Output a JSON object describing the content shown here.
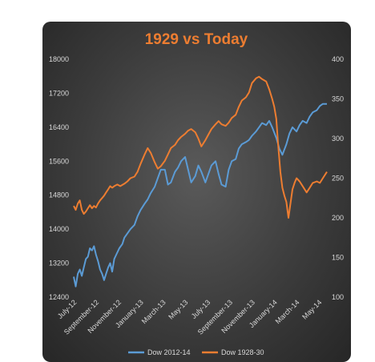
{
  "chart_data": {
    "type": "line",
    "title": "1929 vs Today",
    "x_categories": [
      "July-12",
      "September-12",
      "November-12",
      "January-13",
      "March-13",
      "May-13",
      "July-13",
      "September-13",
      "November-13",
      "January-14",
      "March-14",
      "May-14"
    ],
    "left_axis": {
      "ticks": [
        12400,
        13200,
        14000,
        14800,
        15600,
        16400,
        17200,
        18000
      ],
      "range": [
        12400,
        18000
      ]
    },
    "right_axis": {
      "ticks": [
        100,
        150,
        200,
        250,
        300,
        350,
        400
      ],
      "range": [
        100,
        400
      ]
    },
    "legend_position": "bottom",
    "series": [
      {
        "name": "Dow 2012-14",
        "axis": "left",
        "color": "#5b9bd5",
        "points": [
          [
            0.0,
            12880
          ],
          [
            0.2,
            12650
          ],
          [
            0.4,
            12950
          ],
          [
            0.6,
            13050
          ],
          [
            0.8,
            12900
          ],
          [
            1.0,
            13100
          ],
          [
            1.2,
            13300
          ],
          [
            1.4,
            13350
          ],
          [
            1.6,
            13550
          ],
          [
            1.8,
            13500
          ],
          [
            2.0,
            13600
          ],
          [
            2.2,
            13400
          ],
          [
            2.4,
            13250
          ],
          [
            2.6,
            13050
          ],
          [
            2.8,
            12950
          ],
          [
            3.0,
            12800
          ],
          [
            3.2,
            12950
          ],
          [
            3.4,
            13100
          ],
          [
            3.6,
            13200
          ],
          [
            3.8,
            13000
          ],
          [
            4.0,
            13300
          ],
          [
            4.2,
            13400
          ],
          [
            4.5,
            13550
          ],
          [
            4.8,
            13650
          ],
          [
            5.0,
            13800
          ],
          [
            5.3,
            13900
          ],
          [
            5.6,
            14000
          ],
          [
            6.0,
            14100
          ],
          [
            6.3,
            14300
          ],
          [
            6.6,
            14450
          ],
          [
            7.0,
            14600
          ],
          [
            7.3,
            14700
          ],
          [
            7.6,
            14850
          ],
          [
            8.0,
            15000
          ],
          [
            8.3,
            15200
          ],
          [
            8.6,
            15400
          ],
          [
            9.0,
            15400
          ],
          [
            9.3,
            15050
          ],
          [
            9.6,
            15100
          ],
          [
            10.0,
            15350
          ],
          [
            10.3,
            15450
          ],
          [
            10.6,
            15600
          ],
          [
            11.0,
            15700
          ],
          [
            11.3,
            15400
          ],
          [
            11.6,
            15100
          ],
          [
            12.0,
            15250
          ],
          [
            12.3,
            15500
          ],
          [
            12.6,
            15350
          ],
          [
            13.0,
            15100
          ],
          [
            13.3,
            15300
          ],
          [
            13.6,
            15500
          ],
          [
            14.0,
            15600
          ],
          [
            14.3,
            15300
          ],
          [
            14.6,
            15050
          ],
          [
            15.0,
            15000
          ],
          [
            15.3,
            15400
          ],
          [
            15.6,
            15600
          ],
          [
            16.0,
            15650
          ],
          [
            16.3,
            15900
          ],
          [
            16.6,
            16000
          ],
          [
            17.0,
            16050
          ],
          [
            17.3,
            16100
          ],
          [
            17.6,
            16200
          ],
          [
            18.0,
            16300
          ],
          [
            18.3,
            16400
          ],
          [
            18.6,
            16500
          ],
          [
            19.0,
            16450
          ],
          [
            19.3,
            16550
          ],
          [
            19.6,
            16400
          ],
          [
            20.0,
            16150
          ],
          [
            20.3,
            15900
          ],
          [
            20.6,
            15750
          ],
          [
            21.0,
            16000
          ],
          [
            21.3,
            16250
          ],
          [
            21.6,
            16400
          ],
          [
            22.0,
            16300
          ],
          [
            22.3,
            16450
          ],
          [
            22.6,
            16550
          ],
          [
            23.0,
            16500
          ],
          [
            23.3,
            16650
          ],
          [
            23.6,
            16750
          ],
          [
            24.0,
            16800
          ],
          [
            24.3,
            16900
          ],
          [
            24.6,
            16950
          ],
          [
            25.0,
            16950
          ]
        ]
      },
      {
        "name": "Dow 1928-30",
        "axis": "right",
        "color": "#ed7d31",
        "points": [
          [
            0.0,
            215
          ],
          [
            0.2,
            210
          ],
          [
            0.4,
            218
          ],
          [
            0.6,
            222
          ],
          [
            0.8,
            210
          ],
          [
            1.0,
            205
          ],
          [
            1.2,
            208
          ],
          [
            1.4,
            212
          ],
          [
            1.6,
            216
          ],
          [
            1.8,
            212
          ],
          [
            2.0,
            215
          ],
          [
            2.2,
            213
          ],
          [
            2.4,
            218
          ],
          [
            2.6,
            222
          ],
          [
            2.8,
            225
          ],
          [
            3.0,
            228
          ],
          [
            3.2,
            232
          ],
          [
            3.4,
            236
          ],
          [
            3.6,
            240
          ],
          [
            3.8,
            238
          ],
          [
            4.0,
            240
          ],
          [
            4.3,
            242
          ],
          [
            4.6,
            240
          ],
          [
            5.0,
            243
          ],
          [
            5.3,
            246
          ],
          [
            5.6,
            250
          ],
          [
            6.0,
            252
          ],
          [
            6.3,
            258
          ],
          [
            6.6,
            268
          ],
          [
            7.0,
            280
          ],
          [
            7.3,
            288
          ],
          [
            7.6,
            282
          ],
          [
            8.0,
            270
          ],
          [
            8.3,
            262
          ],
          [
            8.6,
            265
          ],
          [
            9.0,
            272
          ],
          [
            9.3,
            280
          ],
          [
            9.6,
            288
          ],
          [
            10.0,
            292
          ],
          [
            10.3,
            298
          ],
          [
            10.6,
            302
          ],
          [
            11.0,
            306
          ],
          [
            11.3,
            310
          ],
          [
            11.6,
            312
          ],
          [
            12.0,
            308
          ],
          [
            12.3,
            300
          ],
          [
            12.6,
            290
          ],
          [
            13.0,
            298
          ],
          [
            13.3,
            305
          ],
          [
            13.6,
            312
          ],
          [
            14.0,
            318
          ],
          [
            14.3,
            322
          ],
          [
            14.6,
            318
          ],
          [
            15.0,
            316
          ],
          [
            15.3,
            320
          ],
          [
            15.6,
            326
          ],
          [
            16.0,
            330
          ],
          [
            16.3,
            340
          ],
          [
            16.6,
            348
          ],
          [
            17.0,
            352
          ],
          [
            17.3,
            358
          ],
          [
            17.6,
            370
          ],
          [
            18.0,
            376
          ],
          [
            18.3,
            378
          ],
          [
            18.6,
            375
          ],
          [
            19.0,
            372
          ],
          [
            19.3,
            362
          ],
          [
            19.6,
            350
          ],
          [
            19.8,
            340
          ],
          [
            20.0,
            325
          ],
          [
            20.2,
            290
          ],
          [
            20.4,
            258
          ],
          [
            20.6,
            238
          ],
          [
            20.8,
            228
          ],
          [
            21.0,
            220
          ],
          [
            21.2,
            200
          ],
          [
            21.4,
            218
          ],
          [
            21.6,
            236
          ],
          [
            21.8,
            244
          ],
          [
            22.0,
            250
          ],
          [
            22.3,
            246
          ],
          [
            22.6,
            240
          ],
          [
            23.0,
            232
          ],
          [
            23.3,
            238
          ],
          [
            23.6,
            244
          ],
          [
            24.0,
            246
          ],
          [
            24.3,
            244
          ],
          [
            24.6,
            250
          ],
          [
            25.0,
            258
          ]
        ]
      }
    ]
  }
}
